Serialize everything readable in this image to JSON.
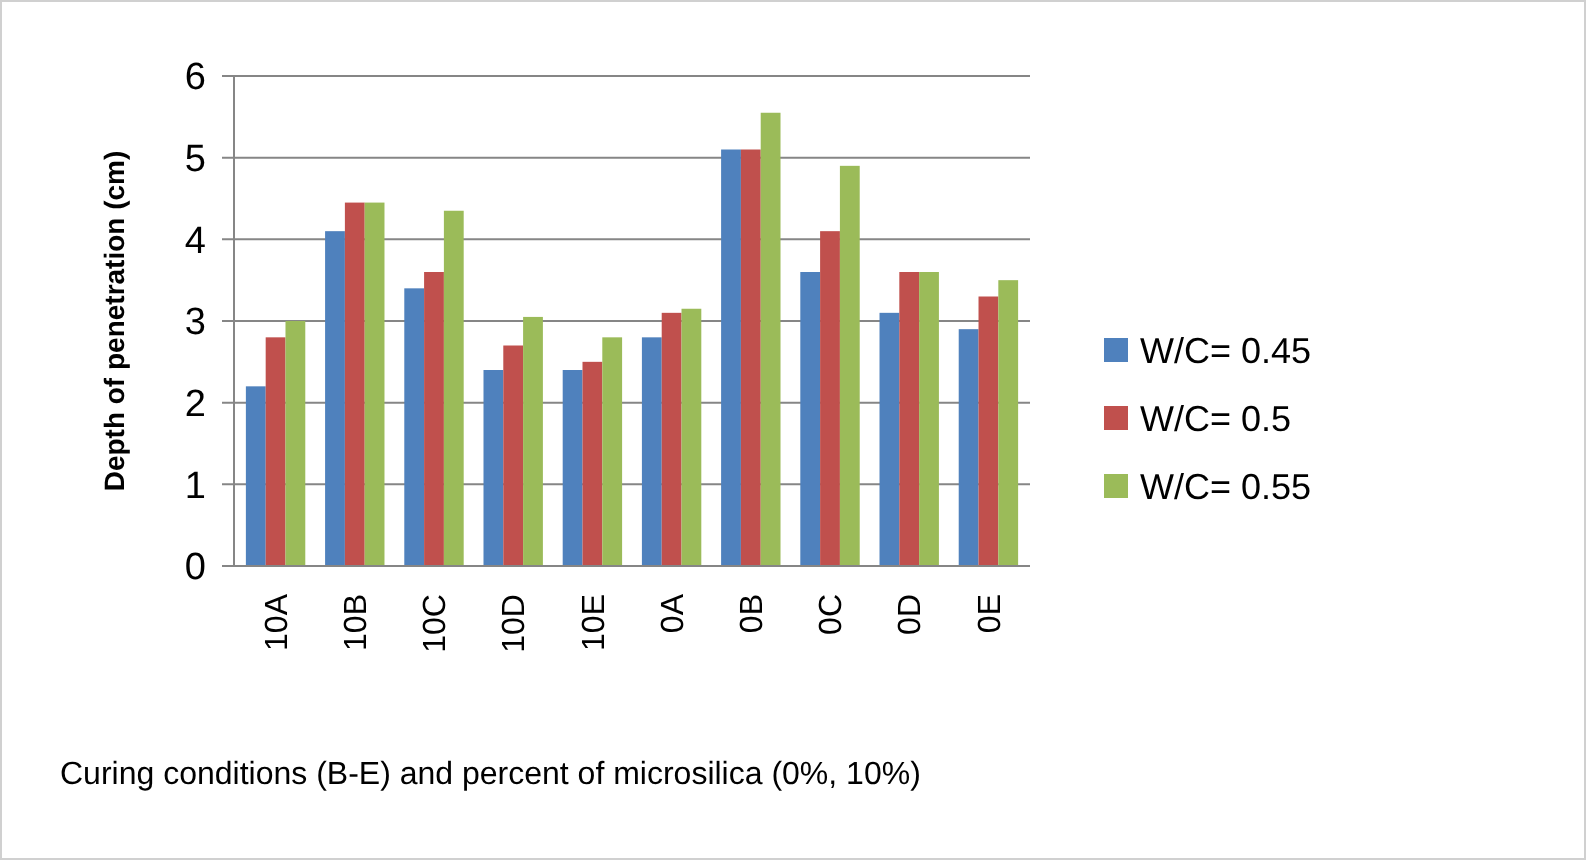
{
  "chart_data": {
    "type": "bar",
    "xlabel": "Curing conditions (B-E) and percent of microsilica (0%, 10%)",
    "ylabel": "Depth of penetration (cm)",
    "categories": [
      "10A",
      "10B",
      "10C",
      "10D",
      "10E",
      "0A",
      "0B",
      "0C",
      "0D",
      "0E"
    ],
    "series": [
      {
        "name": "W/C= 0.45",
        "color": "#4f81bd",
        "values": [
          2.2,
          4.1,
          3.4,
          2.4,
          2.4,
          2.8,
          5.1,
          3.6,
          3.1,
          2.9
        ]
      },
      {
        "name": "W/C= 0.5",
        "color": "#c0504d",
        "values": [
          2.8,
          4.45,
          3.6,
          2.7,
          2.5,
          3.1,
          5.1,
          4.1,
          3.6,
          3.3
        ]
      },
      {
        "name": "W/C= 0.55",
        "color": "#9bbb59",
        "values": [
          3.0,
          4.45,
          4.35,
          3.05,
          2.8,
          3.15,
          5.55,
          4.9,
          3.6,
          3.5
        ]
      }
    ],
    "ylim": [
      0,
      6
    ],
    "yticks": [
      0,
      1,
      2,
      3,
      4,
      5,
      6
    ],
    "grid": "y",
    "legend": "right"
  }
}
